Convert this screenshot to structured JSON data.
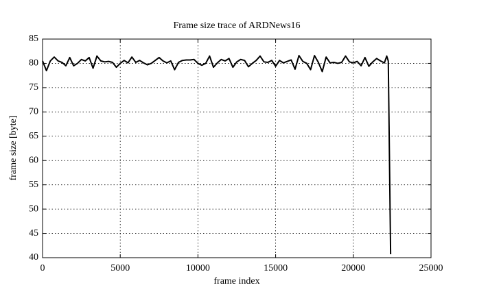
{
  "chart_data": {
    "type": "line",
    "title": "Frame size trace of ARDNews16",
    "x_label": "frame index",
    "y_label": "frame size [byte]",
    "x": [
      0,
      250,
      500,
      750,
      1000,
      1250,
      1500,
      1750,
      2000,
      2250,
      2500,
      2750,
      3000,
      3250,
      3500,
      3750,
      4000,
      4250,
      4500,
      4750,
      5000,
      5250,
      5500,
      5750,
      6000,
      6250,
      6500,
      6750,
      7000,
      7250,
      7500,
      7750,
      8000,
      8250,
      8500,
      8750,
      9000,
      9250,
      9500,
      9750,
      10000,
      10250,
      10500,
      10750,
      11000,
      11250,
      11500,
      11750,
      12000,
      12250,
      12500,
      12750,
      13000,
      13250,
      13500,
      13750,
      14000,
      14250,
      14500,
      14750,
      15000,
      15250,
      15500,
      15750,
      16000,
      16250,
      16500,
      16750,
      17000,
      17250,
      17500,
      17750,
      18000,
      18250,
      18500,
      18750,
      19000,
      19250,
      19500,
      19750,
      20000,
      20250,
      20500,
      20750,
      21000,
      21250,
      21500,
      21750,
      22000,
      22150,
      22250,
      22400
    ],
    "series": [
      {
        "color": "#000000",
        "values": [
          80.5,
          78.5,
          80.5,
          81.3,
          80.5,
          80.2,
          79.5,
          81.2,
          79.5,
          80.0,
          80.8,
          80.5,
          81.2,
          79.0,
          81.5,
          80.5,
          80.3,
          80.4,
          80.2,
          79.2,
          80.0,
          80.6,
          80.1,
          81.3,
          80.2,
          80.6,
          80.1,
          79.7,
          80.0,
          80.6,
          81.2,
          80.5,
          80.1,
          80.5,
          78.7,
          80.2,
          80.6,
          80.7,
          80.7,
          80.8,
          80.0,
          79.6,
          80.0,
          81.5,
          79.2,
          80.1,
          80.8,
          80.5,
          81.0,
          79.2,
          80.3,
          80.8,
          80.6,
          79.3,
          80.0,
          80.6,
          81.5,
          80.3,
          80.2,
          80.6,
          79.4,
          80.6,
          80.1,
          80.4,
          80.7,
          78.8,
          81.6,
          80.4,
          80.0,
          78.7,
          81.6,
          80.2,
          78.3,
          81.3,
          80.1,
          80.2,
          80.0,
          80.2,
          81.5,
          80.3,
          80.1,
          80.4,
          79.5,
          81.2,
          79.4,
          80.3,
          81.0,
          80.5,
          80.1,
          81.5,
          80.5,
          40.7
        ]
      }
    ],
    "xlim": [
      0,
      25000
    ],
    "xticks": [
      0,
      5000,
      10000,
      15000,
      20000,
      25000
    ],
    "ylim": [
      40,
      85
    ],
    "yticks": [
      40,
      45,
      50,
      55,
      60,
      65,
      70,
      75,
      80,
      85
    ],
    "grid": true
  }
}
